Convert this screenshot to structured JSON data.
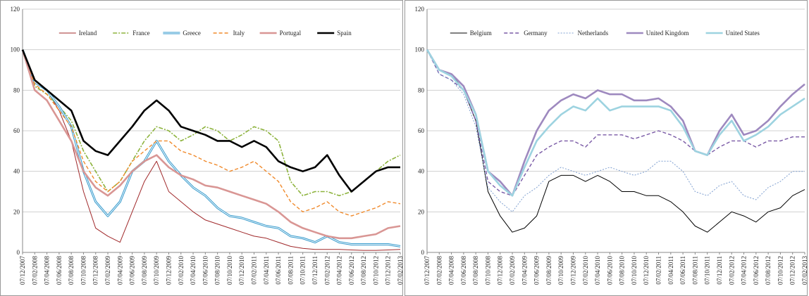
{
  "chart_data": [
    {
      "type": "line",
      "categories": [
        "07/12/2007",
        "07/02/2008",
        "07/04/2008",
        "07/06/2008",
        "07/08/2008",
        "07/10/2008",
        "07/12/2008",
        "07/02/2009",
        "07/04/2009",
        "07/06/2009",
        "07/08/2009",
        "07/10/2009",
        "07/12/2009",
        "07/02/2010",
        "07/04/2010",
        "07/06/2010",
        "07/08/2010",
        "07/10/2010",
        "07/12/2010",
        "07/02/2011",
        "07/04/2011",
        "07/06/2011",
        "07/08/2011",
        "07/10/2011",
        "07/12/2011",
        "07/02/2012",
        "07/04/2012",
        "07/06/2012",
        "07/08/2012",
        "07/10/2012",
        "07/12/2012",
        "07/02/2013"
      ],
      "ylim": [
        0,
        120
      ],
      "yticks": [
        0,
        20,
        40,
        60,
        80,
        100,
        120
      ],
      "legend": "top",
      "series": [
        {
          "name": "Ireland",
          "color": "#a0282a",
          "style": "thin",
          "values": [
            100,
            85,
            80,
            70,
            55,
            30,
            12,
            8,
            5,
            20,
            35,
            45,
            30,
            25,
            20,
            16,
            14,
            12,
            10,
            8,
            7,
            5,
            3,
            2,
            1.5,
            1.5,
            1.5,
            1.2,
            1,
            1,
            1.2,
            1.5
          ]
        },
        {
          "name": "France",
          "color": "#8db33d",
          "style": "dashdot",
          "values": [
            100,
            82,
            78,
            72,
            65,
            50,
            40,
            30,
            35,
            45,
            55,
            62,
            60,
            55,
            58,
            62,
            60,
            55,
            58,
            62,
            60,
            55,
            35,
            28,
            30,
            30,
            28,
            30,
            35,
            40,
            45,
            48
          ]
        },
        {
          "name": "Greece",
          "color": "#3399cc",
          "style": "double",
          "values": [
            100,
            84,
            80,
            72,
            62,
            40,
            25,
            18,
            25,
            40,
            45,
            55,
            45,
            38,
            32,
            28,
            22,
            18,
            17,
            15,
            13,
            12,
            8,
            7,
            5,
            8,
            5,
            4,
            4,
            4,
            4,
            3
          ]
        },
        {
          "name": "Italy",
          "color": "#f08a2c",
          "style": "dashed",
          "values": [
            100,
            83,
            78,
            70,
            62,
            45,
            35,
            30,
            35,
            45,
            50,
            55,
            55,
            50,
            48,
            45,
            43,
            40,
            42,
            45,
            40,
            35,
            25,
            20,
            22,
            25,
            20,
            18,
            20,
            22,
            25,
            24
          ]
        },
        {
          "name": "Portugal",
          "color": "#d99694",
          "style": "thick",
          "values": [
            100,
            80,
            75,
            65,
            55,
            40,
            32,
            28,
            33,
            40,
            45,
            48,
            42,
            38,
            36,
            33,
            32,
            30,
            28,
            26,
            24,
            20,
            15,
            12,
            10,
            8,
            7,
            7,
            8,
            9,
            12,
            13
          ]
        },
        {
          "name": "Spain",
          "color": "#000000",
          "style": "thick",
          "values": [
            100,
            85,
            80,
            75,
            70,
            55,
            50,
            48,
            55,
            62,
            70,
            75,
            70,
            62,
            60,
            58,
            55,
            55,
            52,
            55,
            52,
            45,
            42,
            40,
            42,
            48,
            38,
            30,
            35,
            40,
            42,
            42
          ]
        }
      ]
    },
    {
      "type": "line",
      "categories": [
        "07/12/2007",
        "07/02/2008",
        "07/04/2008",
        "07/06/2008",
        "07/08/2008",
        "07/10/2008",
        "07/12/2008",
        "07/02/2009",
        "07/04/2009",
        "07/06/2009",
        "07/08/2009",
        "07/10/2009",
        "07/12/2009",
        "07/02/2010",
        "07/04/2010",
        "07/06/2010",
        "07/08/2010",
        "07/10/2010",
        "07/12/2010",
        "07/02/2011",
        "07/04/2011",
        "07/06/2011",
        "07/08/2011",
        "07/10/2011",
        "07/12/2011",
        "07/02/2012",
        "07/04/2012",
        "07/06/2012",
        "07/08/2012",
        "07/10/2012",
        "07/12/2012",
        "07/02/2013"
      ],
      "ylim": [
        0,
        120
      ],
      "yticks": [
        0,
        20,
        40,
        60,
        80,
        100,
        120
      ],
      "legend": "top",
      "series": [
        {
          "name": "Belgium",
          "color": "#000000",
          "style": "thin",
          "values": [
            100,
            90,
            88,
            80,
            65,
            30,
            18,
            10,
            12,
            18,
            35,
            38,
            38,
            35,
            38,
            35,
            30,
            30,
            28,
            28,
            25,
            20,
            13,
            10,
            15,
            20,
            18,
            15,
            20,
            22,
            28,
            31
          ]
        },
        {
          "name": "Germany",
          "color": "#7a5aa6",
          "style": "dashed",
          "values": [
            100,
            88,
            85,
            80,
            65,
            35,
            30,
            28,
            38,
            48,
            52,
            55,
            55,
            52,
            58,
            58,
            58,
            56,
            58,
            60,
            58,
            55,
            50,
            48,
            52,
            55,
            55,
            52,
            55,
            55,
            57,
            57
          ]
        },
        {
          "name": "Netherlands",
          "color": "#7f9fd0",
          "style": "dotted",
          "values": [
            100,
            88,
            85,
            78,
            62,
            32,
            25,
            20,
            28,
            32,
            38,
            42,
            40,
            38,
            40,
            42,
            40,
            38,
            40,
            45,
            45,
            40,
            30,
            28,
            33,
            35,
            28,
            26,
            32,
            35,
            40,
            40
          ]
        },
        {
          "name": "United Kingdom",
          "color": "#9e89bf",
          "style": "thick",
          "values": [
            100,
            90,
            88,
            82,
            68,
            40,
            35,
            28,
            45,
            60,
            70,
            75,
            78,
            76,
            80,
            78,
            78,
            75,
            75,
            76,
            72,
            65,
            50,
            48,
            60,
            68,
            58,
            60,
            65,
            72,
            78,
            83
          ]
        },
        {
          "name": "United States",
          "color": "#9dd3e0",
          "style": "thick",
          "values": [
            100,
            90,
            87,
            80,
            68,
            40,
            33,
            28,
            42,
            55,
            62,
            68,
            72,
            70,
            76,
            70,
            72,
            72,
            72,
            72,
            70,
            62,
            50,
            48,
            58,
            65,
            55,
            58,
            62,
            68,
            72,
            76
          ]
        }
      ]
    }
  ]
}
